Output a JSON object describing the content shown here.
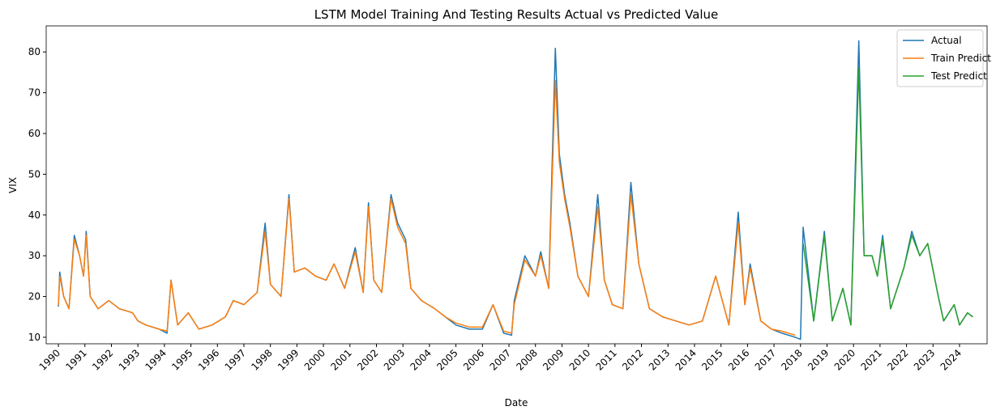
{
  "chart_data": {
    "type": "line",
    "title": "LSTM Model Training And Testing Results Actual vs Predicted Value",
    "x_label": "Date",
    "y_label": "VIX",
    "x": [
      1990.0,
      1990.05,
      1990.2,
      1990.4,
      1990.6,
      1990.8,
      1990.95,
      1991.05,
      1991.2,
      1991.5,
      1991.9,
      1992.3,
      1992.8,
      1993.0,
      1993.3,
      1993.8,
      1994.1,
      1994.25,
      1994.5,
      1994.9,
      1995.3,
      1995.8,
      1996.3,
      1996.6,
      1997.0,
      1997.5,
      1997.8,
      1998.0,
      1998.4,
      1998.7,
      1998.9,
      1999.3,
      1999.7,
      2000.1,
      2000.4,
      2000.8,
      2001.2,
      2001.5,
      2001.7,
      2001.9,
      2002.2,
      2002.55,
      2002.8,
      2003.1,
      2003.3,
      2003.7,
      2004.2,
      2004.6,
      2005.0,
      2005.5,
      2006.0,
      2006.4,
      2006.8,
      2007.1,
      2007.2,
      2007.6,
      2008.0,
      2008.2,
      2008.5,
      2008.75,
      2008.9,
      2009.1,
      2009.3,
      2009.6,
      2010.0,
      2010.35,
      2010.6,
      2010.9,
      2011.3,
      2011.6,
      2011.9,
      2012.3,
      2012.8,
      2013.3,
      2013.8,
      2014.3,
      2014.8,
      2015.3,
      2015.65,
      2015.9,
      2016.1,
      2016.5,
      2016.9,
      2017.3,
      2017.8,
      2018.0,
      2018.1,
      2018.5,
      2018.9,
      2019.2,
      2019.6,
      2019.9,
      2020.2,
      2020.4,
      2020.7,
      2020.9,
      2021.1,
      2021.4,
      2021.9,
      2022.2,
      2022.5,
      2022.8,
      2023.2,
      2023.4,
      2023.8,
      2024.0,
      2024.3,
      2024.5
    ],
    "series": [
      {
        "name": "Actual",
        "color": "#1f77b4",
        "values": [
          17.5,
          26,
          20,
          17,
          35,
          30,
          25,
          36,
          20,
          17,
          19,
          17,
          16,
          14,
          13,
          12,
          11,
          24,
          13,
          16,
          12,
          13,
          15,
          19,
          18,
          21,
          38,
          23,
          20,
          45,
          26,
          27,
          25,
          24,
          28,
          22,
          32,
          21,
          43,
          24,
          21,
          45,
          38,
          34,
          22,
          19,
          17,
          15,
          13,
          12,
          12,
          18,
          11,
          10.5,
          19,
          30,
          25,
          31,
          22,
          80.9,
          55,
          45,
          38,
          25,
          20,
          45,
          24,
          18,
          17,
          48,
          28,
          17,
          15,
          14,
          13,
          14,
          25,
          13,
          40.7,
          18,
          28,
          14,
          12,
          11,
          10,
          9.5,
          37,
          14,
          36,
          14,
          22,
          13,
          82.7,
          30,
          30,
          25,
          35,
          17,
          27,
          36,
          30,
          33,
          20,
          14,
          18,
          13,
          16,
          15
        ]
      },
      {
        "name": "Train Predict",
        "color": "#ff7f0e",
        "values": [
          17.8,
          25,
          20,
          17,
          34,
          30,
          25,
          35,
          20,
          17,
          19,
          17,
          16,
          14,
          13,
          12,
          11.5,
          24,
          13,
          16,
          12,
          13,
          15,
          19,
          18,
          21,
          36,
          23,
          20,
          44,
          26,
          27,
          25,
          24,
          28,
          22,
          31,
          21,
          42,
          24,
          21,
          44,
          37,
          33,
          22,
          19,
          17,
          15,
          13.5,
          12.5,
          12.5,
          18,
          11.5,
          11,
          18,
          29,
          25,
          30,
          22,
          73,
          53,
          44,
          37,
          25,
          20,
          42,
          24,
          18,
          17,
          45,
          28,
          17,
          15,
          14,
          13,
          14,
          25,
          13,
          38,
          18,
          27,
          14,
          12,
          11.5,
          10.5,
          null,
          null,
          null,
          null,
          null,
          null,
          null,
          null,
          null,
          null,
          null,
          null,
          null,
          null,
          null,
          null,
          null,
          null,
          null,
          null,
          null,
          null,
          null
        ]
      },
      {
        "name": "Test Predict",
        "color": "#2ca02c",
        "values": [
          null,
          null,
          null,
          null,
          null,
          null,
          null,
          null,
          null,
          null,
          null,
          null,
          null,
          null,
          null,
          null,
          null,
          null,
          null,
          null,
          null,
          null,
          null,
          null,
          null,
          null,
          null,
          null,
          null,
          null,
          null,
          null,
          null,
          null,
          null,
          null,
          null,
          null,
          null,
          null,
          null,
          null,
          null,
          null,
          null,
          null,
          null,
          null,
          null,
          null,
          null,
          null,
          null,
          null,
          null,
          null,
          null,
          null,
          null,
          null,
          null,
          null,
          null,
          null,
          null,
          null,
          null,
          null,
          null,
          null,
          null,
          null,
          null,
          null,
          null,
          null,
          null,
          null,
          null,
          null,
          null,
          null,
          null,
          null,
          null,
          null,
          33,
          14,
          35,
          14,
          22,
          13,
          76,
          30,
          30,
          25,
          34,
          17,
          27,
          35,
          30,
          33,
          20,
          14,
          18,
          13,
          16,
          15
        ]
      }
    ],
    "xlim": [
      1989.54,
      2025.04
    ],
    "xticks": [
      1990,
      1991,
      1992,
      1993,
      1994,
      1995,
      1996,
      1997,
      1998,
      1999,
      2000,
      2001,
      2002,
      2003,
      2004,
      2005,
      2006,
      2007,
      2008,
      2009,
      2010,
      2011,
      2012,
      2013,
      2014,
      2015,
      2016,
      2017,
      2018,
      2019,
      2020,
      2021,
      2022,
      2023,
      2024
    ],
    "ylim": [
      8.4,
      86.4
    ],
    "yticks": [
      10,
      20,
      30,
      40,
      50,
      60,
      70,
      80
    ],
    "legend": "upper right"
  }
}
